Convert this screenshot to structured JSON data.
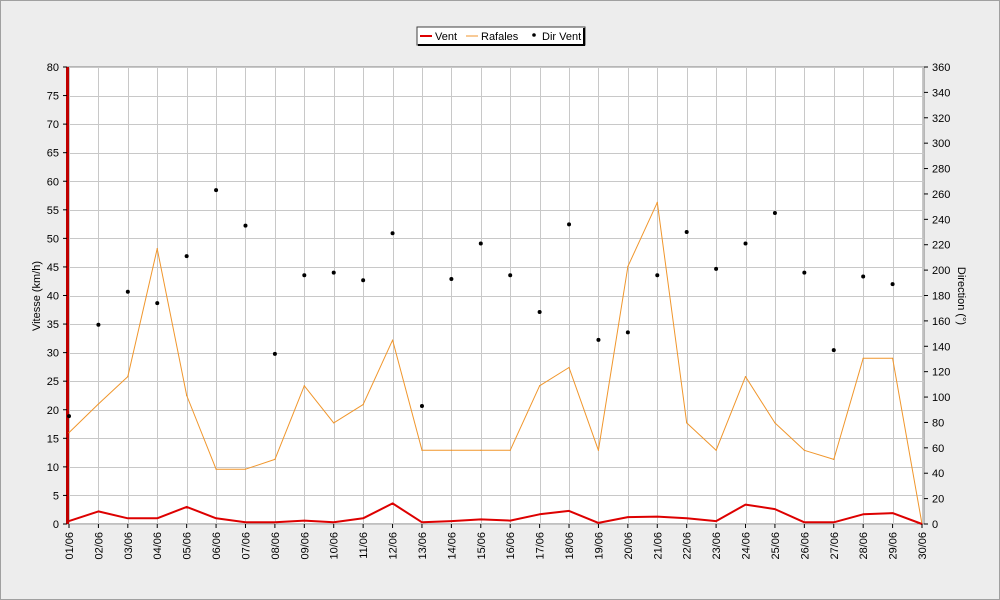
{
  "chart_data": {
    "type": "line",
    "categories": [
      "01/06",
      "02/06",
      "03/06",
      "04/06",
      "05/06",
      "06/06",
      "07/06",
      "08/06",
      "09/06",
      "10/06",
      "11/06",
      "12/06",
      "13/06",
      "14/06",
      "15/06",
      "16/06",
      "17/06",
      "18/06",
      "19/06",
      "20/06",
      "21/06",
      "22/06",
      "23/06",
      "24/06",
      "25/06",
      "26/06",
      "27/06",
      "28/06",
      "29/06",
      "30/06"
    ],
    "series": [
      {
        "name": "Vent",
        "type": "line",
        "axis": "left",
        "color": "#dd0000",
        "values": [
          0.5,
          2.2,
          1,
          1,
          3,
          1,
          0.3,
          0.3,
          0.6,
          0.3,
          1,
          3.6,
          0.3,
          0.5,
          0.8,
          0.6,
          1.7,
          2.3,
          0.2,
          1.2,
          1.3,
          1,
          0.5,
          3.4,
          2.6,
          0.3,
          0.3,
          1.7,
          1.9,
          0
        ]
      },
      {
        "name": "Rafales",
        "type": "line",
        "axis": "left",
        "color": "#f0962c",
        "values": [
          16,
          21,
          25.8,
          48.2,
          22.5,
          9.6,
          9.6,
          11.3,
          24.2,
          17.7,
          20.9,
          32.2,
          12.9,
          12.9,
          12.9,
          12.9,
          24.2,
          27.4,
          12.9,
          45.1,
          56.3,
          17.7,
          12.9,
          25.8,
          17.7,
          12.9,
          11.3,
          29,
          29,
          0
        ]
      },
      {
        "name": "Dir Vent",
        "type": "scatter",
        "axis": "right",
        "color": "#000000",
        "values": [
          85,
          157,
          183,
          174,
          211,
          263,
          235,
          134,
          196,
          198,
          192,
          229,
          93,
          193,
          221,
          196,
          167,
          236,
          145,
          151,
          196,
          230,
          201,
          221,
          245,
          198,
          137,
          195,
          189,
          null
        ]
      }
    ],
    "ylabel_left": "Vitesse (km/h)",
    "ylabel_right": "Direction (°)",
    "ylim_left": [
      0,
      80
    ],
    "ylim_right": [
      0,
      360
    ],
    "yticks_left": [
      "0",
      "5",
      "10",
      "15",
      "20",
      "25",
      "30",
      "35",
      "40",
      "45",
      "50",
      "55",
      "60",
      "65",
      "70",
      "75",
      "80"
    ],
    "yticks_right": [
      "0",
      "20",
      "40",
      "60",
      "80",
      "100",
      "120",
      "140",
      "160",
      "180",
      "200",
      "220",
      "240",
      "260",
      "280",
      "300",
      "320",
      "340",
      "360"
    ],
    "grid": true,
    "legend_position": "top-center"
  }
}
